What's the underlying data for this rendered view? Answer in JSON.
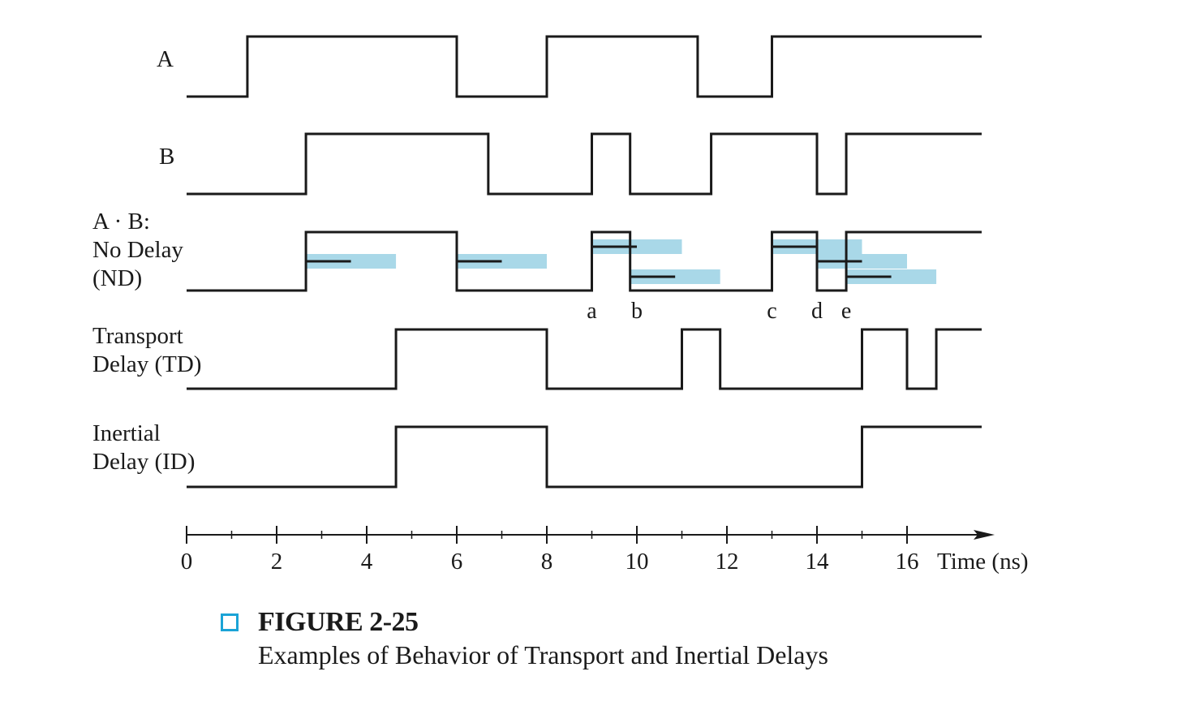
{
  "signals": [
    {
      "id": "A",
      "label_lines": [
        "A"
      ],
      "initial": 0,
      "edges": [
        1.35,
        6.0,
        8.0,
        11.35,
        13.0
      ]
    },
    {
      "id": "B",
      "label_lines": [
        "B"
      ],
      "initial": 0,
      "edges": [
        2.65,
        6.7,
        9.0,
        9.85,
        11.65,
        14.0,
        14.65
      ]
    },
    {
      "id": "ND",
      "label_lines": [
        "A · B:",
        "No Delay",
        "(ND)"
      ],
      "initial": 0,
      "edges": [
        2.65,
        6.0,
        9.0,
        9.85,
        13.0,
        14.0,
        14.65
      ]
    },
    {
      "id": "TD",
      "label_lines": [
        "Transport",
        "Delay (TD)"
      ],
      "initial": 0,
      "edges": [
        4.65,
        8.0,
        11.0,
        11.85,
        15.0,
        16.0,
        16.65
      ]
    },
    {
      "id": "ID",
      "label_lines": [
        "Inertial",
        "Delay (ID)"
      ],
      "initial": 0,
      "edges": [
        4.65,
        8.0,
        15.0
      ]
    }
  ],
  "delay_markers": [
    {
      "start": 2.65,
      "line_end": 3.65,
      "bar_end": 4.65,
      "level": 0
    },
    {
      "start": 6.0,
      "line_end": 7.0,
      "bar_end": 8.0,
      "level": 0
    },
    {
      "start": 9.0,
      "line_end": 10.0,
      "bar_end": 11.0,
      "level": 1
    },
    {
      "start": 9.85,
      "line_end": 10.85,
      "bar_end": 11.85,
      "level": -1
    },
    {
      "start": 13.0,
      "line_end": 14.0,
      "bar_end": 15.0,
      "level": 1
    },
    {
      "start": 14.0,
      "line_end": 15.0,
      "bar_end": 16.0,
      "level": 0
    },
    {
      "start": 14.65,
      "line_end": 15.65,
      "bar_end": 16.65,
      "level": -1
    }
  ],
  "event_labels": [
    {
      "text": "a",
      "t": 9.0
    },
    {
      "text": "b",
      "t": 10.0
    },
    {
      "text": "c",
      "t": 13.0
    },
    {
      "text": "d",
      "t": 14.0
    },
    {
      "text": "e",
      "t": 14.65
    }
  ],
  "time_axis": {
    "ticks": [
      "0",
      "2",
      "4",
      "6",
      "8",
      "10",
      "12",
      "14",
      "16"
    ],
    "tick_values": [
      0,
      2,
      4,
      6,
      8,
      10,
      12,
      14,
      16
    ],
    "minor_values": [
      1,
      3,
      5,
      7,
      9,
      11,
      13,
      15
    ],
    "label": "Time (ns)",
    "range": [
      0,
      17.7
    ]
  },
  "colors": {
    "waveform": "#1a1a1a",
    "delay_bar": "#a9d8e8",
    "caption_box": "#1ba3d6"
  },
  "caption": {
    "title": "FIGURE 2-25",
    "text": "Examples of Behavior of Transport and Inertial Delays"
  }
}
